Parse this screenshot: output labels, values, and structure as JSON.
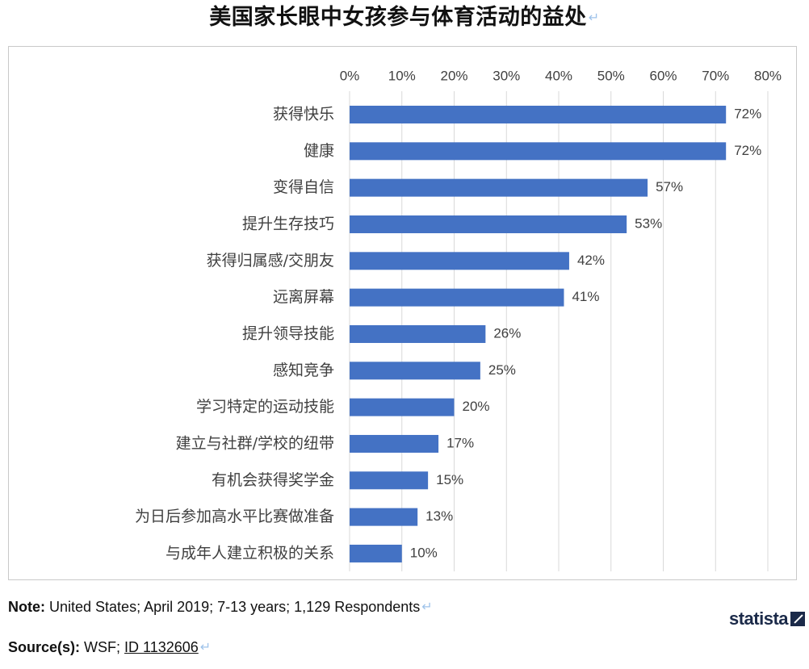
{
  "title": "美国家长眼中女孩参与体育活动的益处",
  "note": {
    "label": "Note:",
    "text": " United States; April 2019; 7-13 years; 1,129 Respondents"
  },
  "source": {
    "label": "Source(s):",
    "text": " WSF; ",
    "id": "ID 1132606"
  },
  "brand": "statista",
  "colors": {
    "bar": "#4472c4",
    "grid": "#d9d9d9",
    "text": "#404040"
  },
  "chart_data": {
    "type": "bar",
    "orientation": "horizontal",
    "categories": [
      "获得快乐",
      "健康",
      "变得自信",
      "提升生存技巧",
      "获得归属感/交朋友",
      "远离屏幕",
      "提升领导技能",
      "感知竞争",
      "学习特定的运动技能",
      "建立与社群/学校的纽带",
      "有机会获得奖学金",
      "为日后参加高水平比赛做准备",
      "与成年人建立积极的关系"
    ],
    "values": [
      72,
      72,
      57,
      53,
      42,
      41,
      26,
      25,
      20,
      17,
      15,
      13,
      10
    ],
    "value_labels": [
      "72%",
      "72%",
      "57%",
      "53%",
      "42%",
      "41%",
      "26%",
      "25%",
      "20%",
      "17%",
      "15%",
      "13%",
      "10%"
    ],
    "xlim": [
      0,
      80
    ],
    "x_ticks": [
      "0%",
      "10%",
      "20%",
      "30%",
      "40%",
      "50%",
      "60%",
      "70%",
      "80%"
    ],
    "axis_position": "top",
    "grid": true,
    "legend": false
  }
}
